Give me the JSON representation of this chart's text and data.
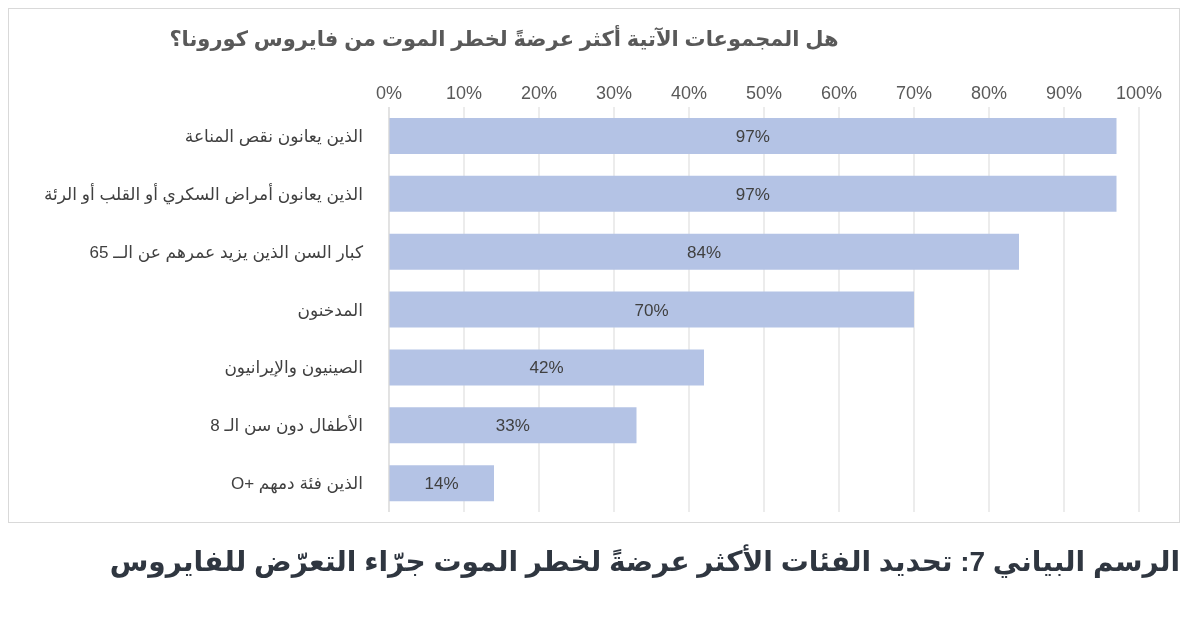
{
  "chart_data": {
    "type": "bar",
    "orientation": "horizontal",
    "title": "هل المجموعات الآتية أكثر عرضةً لخطر الموت من فايروس كورونا؟",
    "categories": [
      "الذين يعانون نقص المناعة",
      "الذين يعانون أمراض السكري أو القلب أو الرئة",
      "كبار السن الذين يزيد عمرهم عن الــ 65",
      "المدخنون",
      "الصينيون والإيرانيون",
      "الأطفال دون سن الـ 8",
      "الذين فئة دمهم +O"
    ],
    "values": [
      97,
      97,
      84,
      70,
      42,
      33,
      14
    ],
    "value_labels": [
      "97%",
      "97%",
      "84%",
      "70%",
      "42%",
      "33%",
      "14%"
    ],
    "color": "#b4c3e5",
    "xlim": [
      0,
      100
    ],
    "xticks": [
      {
        "value": 0,
        "label": "0%"
      },
      {
        "value": 10,
        "label": "10%"
      },
      {
        "value": 20,
        "label": "20%"
      },
      {
        "value": 30,
        "label": "30%"
      },
      {
        "value": 40,
        "label": "40%"
      },
      {
        "value": 50,
        "label": "50%"
      },
      {
        "value": 60,
        "label": "60%"
      },
      {
        "value": 70,
        "label": "70%"
      },
      {
        "value": 80,
        "label": "80%"
      },
      {
        "value": 90,
        "label": "90%"
      },
      {
        "value": 100,
        "label": "100%"
      }
    ],
    "grid": "x",
    "annotations": [
      "الرسم البياني 7: تحديد الفئات الأكثر عرضةً لخطر الموت جرّاء التعرّض للفايروس"
    ]
  }
}
